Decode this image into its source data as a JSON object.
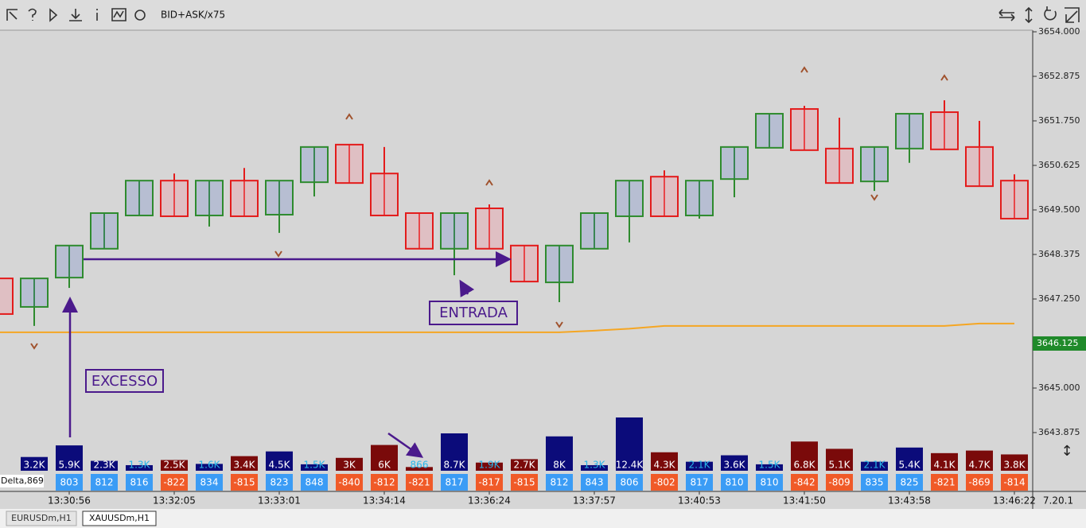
{
  "chart_data": {
    "type": "candlestick",
    "indicator": "BID+ASK/x75",
    "categories": [
      null,
      null,
      "13:30:56",
      null,
      null,
      "13:32:05",
      null,
      null,
      "13:33:01",
      null,
      null,
      "13:34:14",
      null,
      null,
      "13:36:24",
      null,
      null,
      "13:37:57",
      null,
      null,
      "13:40:53",
      null,
      null,
      "13:41:50",
      null,
      null,
      "13:43:58",
      null,
      null,
      "13:46:22"
    ],
    "open": [
      3647.77,
      3647.05,
      3647.79,
      3648.52,
      3649.36,
      3650.24,
      3649.36,
      3650.24,
      3649.38,
      3650.2,
      3651.15,
      3650.42,
      3649.42,
      3648.52,
      3649.54,
      3648.6,
      3647.67,
      3648.52,
      3649.34,
      3650.34,
      3649.36,
      3650.28,
      3651.07,
      3652.05,
      3651.05,
      3650.22,
      3651.05,
      3651.97,
      3651.09,
      3650.24
    ],
    "high": [
      3647.77,
      3647.77,
      3648.6,
      3649.42,
      3650.24,
      3650.42,
      3650.24,
      3650.56,
      3650.24,
      3651.09,
      3651.15,
      3651.09,
      3649.42,
      3649.42,
      3649.64,
      3648.6,
      3648.6,
      3649.42,
      3650.24,
      3650.5,
      3650.24,
      3651.09,
      3651.93,
      3652.13,
      3651.83,
      3651.09,
      3651.93,
      3652.27,
      3651.75,
      3650.4
    ],
    "low": [
      3646.87,
      3646.57,
      3647.53,
      3648.52,
      3649.36,
      3649.34,
      3649.08,
      3649.34,
      3648.92,
      3649.84,
      3650.18,
      3649.36,
      3648.52,
      3647.85,
      3648.52,
      3647.69,
      3647.17,
      3648.52,
      3648.68,
      3649.34,
      3649.28,
      3649.82,
      3651.07,
      3651.01,
      3650.18,
      3649.98,
      3650.69,
      3651.03,
      3650.1,
      3649.28
    ],
    "close": [
      3646.87,
      3647.77,
      3648.6,
      3649.42,
      3650.24,
      3649.34,
      3650.24,
      3649.34,
      3650.24,
      3651.09,
      3650.18,
      3649.36,
      3648.52,
      3649.42,
      3648.52,
      3647.69,
      3648.6,
      3649.42,
      3650.24,
      3649.34,
      3650.24,
      3651.09,
      3651.93,
      3651.01,
      3650.18,
      3651.09,
      3651.93,
      3651.03,
      3650.1,
      3649.28
    ],
    "up_color": "#2e8b2e",
    "down_color": "#e31b1b",
    "line": {
      "color": "#f5a623",
      "values": [
        3646.41,
        3646.41,
        3646.41,
        3646.41,
        3646.41,
        3646.41,
        3646.41,
        3646.41,
        3646.41,
        3646.41,
        3646.41,
        3646.41,
        3646.41,
        3646.41,
        3646.41,
        3646.41,
        3646.41,
        3646.45,
        3646.5,
        3646.57,
        3646.57,
        3646.57,
        3646.57,
        3646.57,
        3646.57,
        3646.57,
        3646.57,
        3646.57,
        3646.63,
        3646.63
      ]
    },
    "volume": {
      "values": [
        null,
        3200,
        5900,
        2300,
        1300,
        2500,
        1600,
        3400,
        4500,
        1500,
        3000,
        6000,
        866,
        8700,
        1900,
        2700,
        8000,
        1300,
        12400,
        4300,
        2100,
        3600,
        1500,
        6800,
        5100,
        2100,
        5400,
        4100,
        4700,
        3800
      ],
      "value_labels": [
        null,
        "3.2K",
        "5.9K",
        "2.3K",
        "1.3K",
        "2.5K",
        "1.6K",
        "3.4K",
        "4.5K",
        "1.5K",
        "3K",
        "6K",
        "866",
        "8.7K",
        "1.9K",
        "2.7K",
        "8K",
        "1.3K",
        "12.4K",
        "4.3K",
        "2.1K",
        "3.6K",
        "1.5K",
        "6.8K",
        "5.1K",
        "2.1K",
        "5.4K",
        "4.1K",
        "4.7K",
        "3.8K"
      ]
    },
    "delta_title": "Delta,869",
    "delta": [
      null,
      null,
      803,
      812,
      816,
      -822,
      834,
      -815,
      823,
      848,
      -840,
      -812,
      -821,
      817,
      -817,
      -815,
      812,
      843,
      806,
      -802,
      817,
      810,
      810,
      -842,
      -809,
      835,
      825,
      -821,
      -869,
      -814
    ],
    "ylim": [
      3642.375,
      3654.0
    ],
    "yticks": [
      {
        "value": 3654.0,
        "label": "3654.000"
      },
      {
        "value": 3652.875,
        "label": "3652.875"
      },
      {
        "value": 3651.75,
        "label": "3651.750"
      },
      {
        "value": 3650.625,
        "label": "3650.625"
      },
      {
        "value": 3649.5,
        "label": "3649.500"
      },
      {
        "value": 3648.375,
        "label": "3648.375"
      },
      {
        "value": 3647.25,
        "label": "3647.250"
      },
      {
        "value": 3645.0,
        "label": "3645.000"
      },
      {
        "value": 3643.875,
        "label": "3643.875"
      }
    ],
    "current_price": {
      "value": 3646.125,
      "label": "3646.125"
    },
    "annotations": [
      "EXCESSO",
      "ENTRADA"
    ]
  },
  "ui": {
    "tabs": [
      "EURUSDm,H1",
      "XAUUSDm,H1"
    ],
    "version": "7.20.1"
  }
}
